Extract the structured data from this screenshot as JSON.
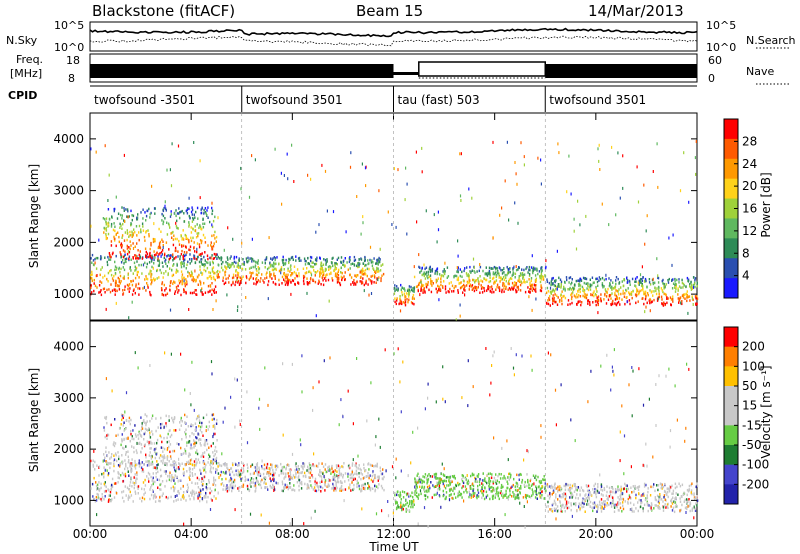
{
  "header": {
    "station": "Blackstone (fitACF)",
    "beam": "Beam 15",
    "date": "14/Mar/2013"
  },
  "nsky_panel": {
    "label": "N.Sky",
    "yticks": [
      "10^5",
      "10^0"
    ],
    "right_label": "N.Search",
    "right_yticks": [
      "10^5",
      "10^0"
    ]
  },
  "freq_panel": {
    "label_line1": "Freq.",
    "label_line2": "[MHz]",
    "yticks": [
      "18",
      "8"
    ],
    "right_label": "Nave",
    "right_yticks": [
      "60",
      "0"
    ]
  },
  "cpid_panel": {
    "label": "CPID",
    "segments": [
      {
        "name": "twofsound -3501",
        "start": 0,
        "end": 6
      },
      {
        "name": "twofsound 3501",
        "start": 6,
        "end": 12
      },
      {
        "name": "tau (fast) 503",
        "start": 12,
        "end": 18
      },
      {
        "name": "twofsound 3501",
        "start": 18,
        "end": 24
      }
    ]
  },
  "x_axis": {
    "label": "Time UT",
    "ticks": [
      "00:00",
      "04:00",
      "08:00",
      "12:00",
      "16:00",
      "20:00",
      "00:00"
    ]
  },
  "colors": {
    "power": [
      "#1a1aff",
      "#2a4fb0",
      "#2e8b57",
      "#5fb85f",
      "#9fd13a",
      "#ffd21a",
      "#ff9900",
      "#ff5a00",
      "#ff0000"
    ],
    "velocity": [
      "#2222aa",
      "#4444cc",
      "#1e7d32",
      "#66cc44",
      "#c8c8c8",
      "#c8c8c8",
      "#ffc000",
      "#ff7f00",
      "#ff0000"
    ]
  },
  "chart_data": [
    {
      "type": "heatmap",
      "title": "Power",
      "ylabel": "Slant Range [km]",
      "xlabel": "Time UT",
      "xlim": [
        0,
        24
      ],
      "ylim": [
        500,
        4500
      ],
      "yticks": [
        "1000",
        "2000",
        "3000",
        "4000"
      ],
      "colorbar": {
        "label": "Power [dB]",
        "ticks": [
          "28",
          "24",
          "20",
          "16",
          "12",
          "8",
          "4"
        ]
      },
      "bands": [
        {
          "start": 0,
          "end": 5,
          "y0": 1000,
          "y1": 1800
        },
        {
          "start": 0.5,
          "end": 5,
          "y0": 1700,
          "y1": 2700
        },
        {
          "start": 5,
          "end": 11.6,
          "y0": 1200,
          "y1": 1750
        },
        {
          "start": 12,
          "end": 12.8,
          "y0": 800,
          "y1": 1200
        },
        {
          "start": 12.8,
          "end": 18,
          "y0": 1050,
          "y1": 1550
        },
        {
          "start": 18,
          "end": 24,
          "y0": 800,
          "y1": 1350
        }
      ]
    },
    {
      "type": "heatmap",
      "title": "Velocity",
      "ylabel": "Slant Range [km]",
      "xlabel": "Time UT",
      "xlim": [
        0,
        24
      ],
      "ylim": [
        500,
        4500
      ],
      "yticks": [
        "1000",
        "2000",
        "3000",
        "4000"
      ],
      "colorbar": {
        "label": "Velocity [m s⁻¹]",
        "ticks": [
          "200",
          "100",
          "50",
          "15",
          "-15",
          "-50",
          "-100",
          "-200"
        ]
      },
      "bands": [
        {
          "start": 0,
          "end": 5,
          "y0": 1000,
          "y1": 1800
        },
        {
          "start": 0.5,
          "end": 5,
          "y0": 1700,
          "y1": 2700
        },
        {
          "start": 5,
          "end": 11.6,
          "y0": 1200,
          "y1": 1750
        },
        {
          "start": 12,
          "end": 12.8,
          "y0": 800,
          "y1": 1200
        },
        {
          "start": 12.8,
          "end": 18,
          "y0": 1050,
          "y1": 1550
        },
        {
          "start": 18,
          "end": 24,
          "y0": 800,
          "y1": 1350
        }
      ]
    }
  ]
}
